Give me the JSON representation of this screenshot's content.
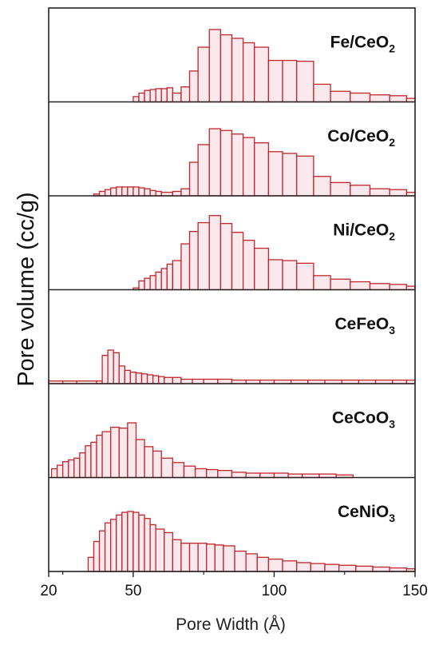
{
  "chart_data": {
    "type": "bar",
    "xlabel": "Pore Width (Å)",
    "ylabel": "Pore volume (cc/g)",
    "xlim": [
      20,
      150
    ],
    "x_ticks": [
      20,
      50,
      100,
      150
    ],
    "x_tick_labels": [
      "20",
      "50",
      "100",
      "150"
    ],
    "bar_color": "#c0262c",
    "bar_fill": "#fbe8ec",
    "frame_color": "#222222",
    "panels": [
      {
        "name": "Fe/CeO2",
        "label_main": "Fe/CeO",
        "label_sub": "2",
        "bins": [
          {
            "x": 50,
            "y": 0.06
          },
          {
            "x": 52,
            "y": 0.1
          },
          {
            "x": 54,
            "y": 0.13
          },
          {
            "x": 56,
            "y": 0.14
          },
          {
            "x": 58,
            "y": 0.15
          },
          {
            "x": 60,
            "y": 0.15
          },
          {
            "x": 62,
            "y": 0.16
          },
          {
            "x": 64,
            "y": 0.1
          },
          {
            "x": 67,
            "y": 0.17
          },
          {
            "x": 70,
            "y": 0.35
          },
          {
            "x": 73,
            "y": 0.62
          },
          {
            "x": 77,
            "y": 0.82
          },
          {
            "x": 81,
            "y": 0.76
          },
          {
            "x": 85,
            "y": 0.72
          },
          {
            "x": 89,
            "y": 0.67
          },
          {
            "x": 93,
            "y": 0.62
          },
          {
            "x": 98,
            "y": 0.47
          },
          {
            "x": 103,
            "y": 0.47
          },
          {
            "x": 108,
            "y": 0.46
          },
          {
            "x": 114,
            "y": 0.2
          },
          {
            "x": 120,
            "y": 0.12
          },
          {
            "x": 127,
            "y": 0.1
          },
          {
            "x": 134,
            "y": 0.08
          },
          {
            "x": 141,
            "y": 0.07
          },
          {
            "x": 147,
            "y": 0.04
          }
        ]
      },
      {
        "name": "Co/CeO2",
        "label_main": "Co/CeO",
        "label_sub": "2",
        "bins": [
          {
            "x": 36,
            "y": 0.02
          },
          {
            "x": 38,
            "y": 0.05
          },
          {
            "x": 40,
            "y": 0.07
          },
          {
            "x": 42,
            "y": 0.09
          },
          {
            "x": 44,
            "y": 0.1
          },
          {
            "x": 46,
            "y": 0.1
          },
          {
            "x": 48,
            "y": 0.1
          },
          {
            "x": 50,
            "y": 0.1
          },
          {
            "x": 52,
            "y": 0.09
          },
          {
            "x": 54,
            "y": 0.08
          },
          {
            "x": 56,
            "y": 0.06
          },
          {
            "x": 58,
            "y": 0.05
          },
          {
            "x": 60,
            "y": 0.04
          },
          {
            "x": 64,
            "y": 0.05
          },
          {
            "x": 67,
            "y": 0.08
          },
          {
            "x": 70,
            "y": 0.38
          },
          {
            "x": 73,
            "y": 0.58
          },
          {
            "x": 77,
            "y": 0.76
          },
          {
            "x": 81,
            "y": 0.74
          },
          {
            "x": 85,
            "y": 0.7
          },
          {
            "x": 89,
            "y": 0.66
          },
          {
            "x": 93,
            "y": 0.6
          },
          {
            "x": 98,
            "y": 0.5
          },
          {
            "x": 103,
            "y": 0.48
          },
          {
            "x": 108,
            "y": 0.45
          },
          {
            "x": 114,
            "y": 0.22
          },
          {
            "x": 120,
            "y": 0.15
          },
          {
            "x": 127,
            "y": 0.12
          },
          {
            "x": 134,
            "y": 0.08
          },
          {
            "x": 141,
            "y": 0.07
          },
          {
            "x": 147,
            "y": 0.04
          }
        ]
      },
      {
        "name": "Ni/CeO2",
        "label_main": "Ni/CeO",
        "label_sub": "2",
        "bins": [
          {
            "x": 50,
            "y": 0.02
          },
          {
            "x": 52,
            "y": 0.1
          },
          {
            "x": 54,
            "y": 0.13
          },
          {
            "x": 56,
            "y": 0.16
          },
          {
            "x": 58,
            "y": 0.2
          },
          {
            "x": 60,
            "y": 0.24
          },
          {
            "x": 62,
            "y": 0.29
          },
          {
            "x": 64,
            "y": 0.33
          },
          {
            "x": 67,
            "y": 0.52
          },
          {
            "x": 70,
            "y": 0.66
          },
          {
            "x": 73,
            "y": 0.76
          },
          {
            "x": 77,
            "y": 0.84
          },
          {
            "x": 81,
            "y": 0.75
          },
          {
            "x": 85,
            "y": 0.65
          },
          {
            "x": 89,
            "y": 0.56
          },
          {
            "x": 93,
            "y": 0.47
          },
          {
            "x": 98,
            "y": 0.34
          },
          {
            "x": 103,
            "y": 0.33
          },
          {
            "x": 108,
            "y": 0.3
          },
          {
            "x": 114,
            "y": 0.16
          },
          {
            "x": 120,
            "y": 0.12
          },
          {
            "x": 127,
            "y": 0.09
          },
          {
            "x": 134,
            "y": 0.07
          },
          {
            "x": 141,
            "y": 0.06
          },
          {
            "x": 147,
            "y": 0.04
          }
        ]
      },
      {
        "name": "CeFeO3",
        "label_main": "CeFeO",
        "label_sub": "3",
        "bins": [
          {
            "x": 20,
            "y": 0.03
          },
          {
            "x": 25,
            "y": 0.03
          },
          {
            "x": 30,
            "y": 0.03
          },
          {
            "x": 37,
            "y": 0.03
          },
          {
            "x": 39,
            "y": 0.32
          },
          {
            "x": 41,
            "y": 0.38
          },
          {
            "x": 43,
            "y": 0.35
          },
          {
            "x": 45,
            "y": 0.2
          },
          {
            "x": 47,
            "y": 0.15
          },
          {
            "x": 49,
            "y": 0.13
          },
          {
            "x": 51,
            "y": 0.12
          },
          {
            "x": 53,
            "y": 0.11
          },
          {
            "x": 55,
            "y": 0.1
          },
          {
            "x": 57,
            "y": 0.09
          },
          {
            "x": 59,
            "y": 0.08
          },
          {
            "x": 61,
            "y": 0.07
          },
          {
            "x": 64,
            "y": 0.07
          },
          {
            "x": 67,
            "y": 0.05
          },
          {
            "x": 71,
            "y": 0.05
          },
          {
            "x": 75,
            "y": 0.05
          },
          {
            "x": 80,
            "y": 0.05
          },
          {
            "x": 85,
            "y": 0.04
          },
          {
            "x": 90,
            "y": 0.04
          },
          {
            "x": 95,
            "y": 0.04
          },
          {
            "x": 100,
            "y": 0.04
          },
          {
            "x": 106,
            "y": 0.04
          },
          {
            "x": 112,
            "y": 0.04
          },
          {
            "x": 118,
            "y": 0.04
          },
          {
            "x": 124,
            "y": 0.04
          },
          {
            "x": 130,
            "y": 0.04
          },
          {
            "x": 136,
            "y": 0.04
          },
          {
            "x": 142,
            "y": 0.04
          },
          {
            "x": 147,
            "y": 0.04
          }
        ]
      },
      {
        "name": "CeCoO3",
        "label_main": "CeCoO",
        "label_sub": "3",
        "bins": [
          {
            "x": 21,
            "y": 0.1
          },
          {
            "x": 23,
            "y": 0.14
          },
          {
            "x": 25,
            "y": 0.18
          },
          {
            "x": 27,
            "y": 0.2
          },
          {
            "x": 29,
            "y": 0.22
          },
          {
            "x": 31,
            "y": 0.28
          },
          {
            "x": 33,
            "y": 0.36
          },
          {
            "x": 35,
            "y": 0.4
          },
          {
            "x": 37,
            "y": 0.48
          },
          {
            "x": 39,
            "y": 0.52
          },
          {
            "x": 42,
            "y": 0.57
          },
          {
            "x": 45,
            "y": 0.56
          },
          {
            "x": 48,
            "y": 0.62
          },
          {
            "x": 51,
            "y": 0.43
          },
          {
            "x": 54,
            "y": 0.35
          },
          {
            "x": 57,
            "y": 0.3
          },
          {
            "x": 60,
            "y": 0.22
          },
          {
            "x": 64,
            "y": 0.17
          },
          {
            "x": 68,
            "y": 0.13
          },
          {
            "x": 72,
            "y": 0.1
          },
          {
            "x": 76,
            "y": 0.09
          },
          {
            "x": 80,
            "y": 0.08
          },
          {
            "x": 85,
            "y": 0.06
          },
          {
            "x": 90,
            "y": 0.05
          },
          {
            "x": 95,
            "y": 0.05
          },
          {
            "x": 100,
            "y": 0.05
          },
          {
            "x": 105,
            "y": 0.04
          },
          {
            "x": 110,
            "y": 0.04
          },
          {
            "x": 116,
            "y": 0.04
          },
          {
            "x": 122,
            "y": 0.03
          }
        ]
      },
      {
        "name": "CeNiO3",
        "label_main": "CeNiO",
        "label_sub": "3",
        "bins": [
          {
            "x": 34,
            "y": 0.16
          },
          {
            "x": 36,
            "y": 0.34
          },
          {
            "x": 38,
            "y": 0.46
          },
          {
            "x": 40,
            "y": 0.55
          },
          {
            "x": 42,
            "y": 0.59
          },
          {
            "x": 44,
            "y": 0.64
          },
          {
            "x": 46,
            "y": 0.67
          },
          {
            "x": 48,
            "y": 0.68
          },
          {
            "x": 50,
            "y": 0.67
          },
          {
            "x": 52,
            "y": 0.64
          },
          {
            "x": 54,
            "y": 0.6
          },
          {
            "x": 56,
            "y": 0.53
          },
          {
            "x": 58,
            "y": 0.48
          },
          {
            "x": 61,
            "y": 0.44
          },
          {
            "x": 64,
            "y": 0.36
          },
          {
            "x": 67,
            "y": 0.32
          },
          {
            "x": 70,
            "y": 0.32
          },
          {
            "x": 73,
            "y": 0.32
          },
          {
            "x": 76,
            "y": 0.31
          },
          {
            "x": 79,
            "y": 0.3
          },
          {
            "x": 82,
            "y": 0.29
          },
          {
            "x": 86,
            "y": 0.23
          },
          {
            "x": 90,
            "y": 0.2
          },
          {
            "x": 94,
            "y": 0.16
          },
          {
            "x": 98,
            "y": 0.14
          },
          {
            "x": 103,
            "y": 0.12
          },
          {
            "x": 108,
            "y": 0.1
          },
          {
            "x": 113,
            "y": 0.09
          },
          {
            "x": 118,
            "y": 0.08
          },
          {
            "x": 123,
            "y": 0.07
          },
          {
            "x": 129,
            "y": 0.06
          },
          {
            "x": 135,
            "y": 0.05
          },
          {
            "x": 141,
            "y": 0.04
          },
          {
            "x": 147,
            "y": 0.03
          }
        ]
      }
    ]
  }
}
